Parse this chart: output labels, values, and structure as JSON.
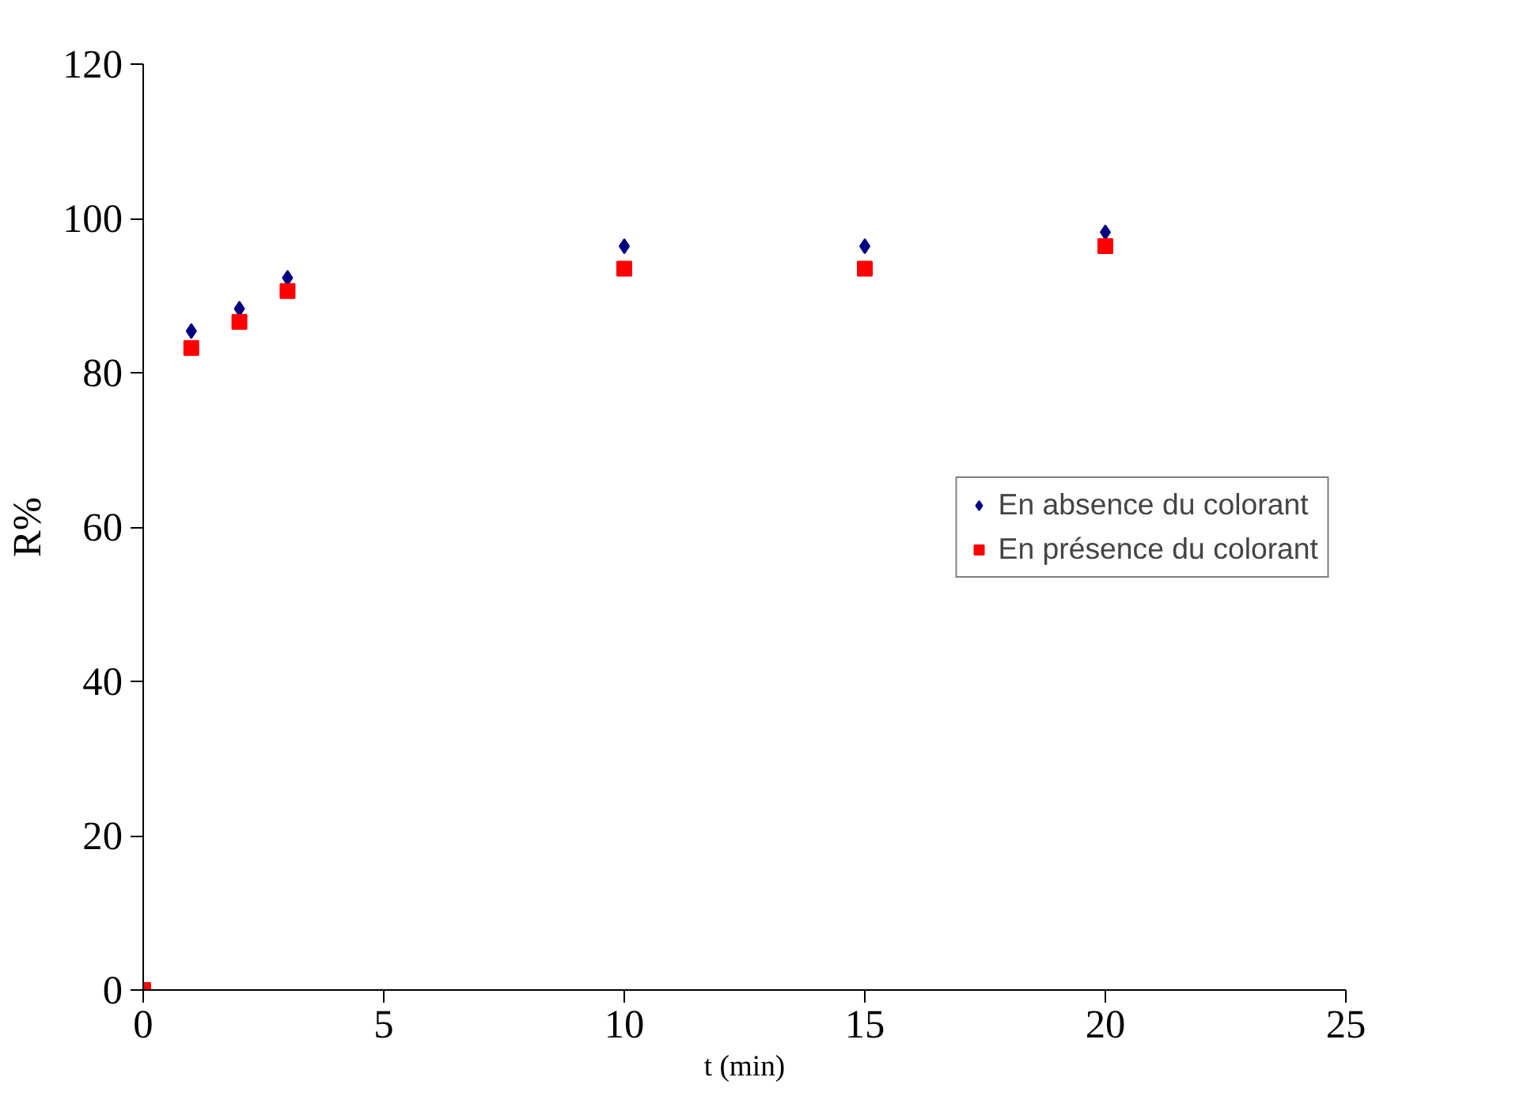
{
  "chart_data": {
    "type": "scatter",
    "xlabel": "t (min)",
    "ylabel": "R%",
    "x": [
      0,
      1,
      2,
      3,
      10,
      15,
      20
    ],
    "series": [
      {
        "name": "En absence du colorant",
        "color": "#000080",
        "marker": "diamond",
        "values": [
          null,
          85.4,
          88.3,
          92.3,
          96.4,
          96.4,
          98.2
        ]
      },
      {
        "name": "En présence du colorant",
        "color": "#ff0000",
        "marker": "square",
        "values": [
          0,
          83.2,
          86.6,
          90.6,
          93.5,
          93.5,
          96.4
        ]
      }
    ],
    "xlim": [
      0,
      25
    ],
    "xticks": [
      0,
      5,
      10,
      15,
      20,
      25
    ],
    "ylim": [
      0,
      120
    ],
    "yticks": [
      0,
      20,
      40,
      60,
      80,
      100,
      120
    ],
    "grid": false,
    "legend": "right"
  }
}
